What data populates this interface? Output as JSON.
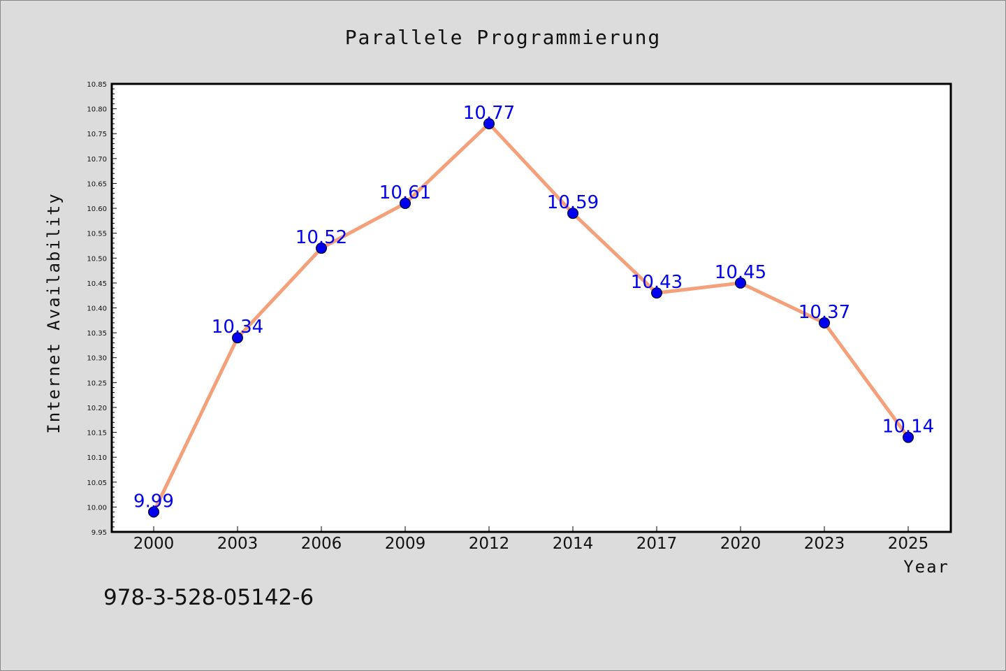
{
  "chart_data": {
    "type": "line",
    "title": "Parallele Programmierung",
    "xlabel": "Year",
    "ylabel": "Internet Availability",
    "categories": [
      "2000",
      "2003",
      "2006",
      "2009",
      "2012",
      "2014",
      "2017",
      "2020",
      "2023",
      "2025"
    ],
    "series": [
      {
        "values": [
          9.99,
          10.34,
          10.52,
          10.61,
          10.77,
          10.59,
          10.43,
          10.45,
          10.37,
          10.14
        ],
        "line_color": "#f4a07a",
        "marker_color": "#0000ee"
      }
    ],
    "data_labels": [
      "9.99",
      "10.34",
      "10.52",
      "10.61",
      "10.77",
      "10.59",
      "10.43",
      "10.45",
      "10.37",
      "10.14"
    ],
    "ylim": [
      9.95,
      10.85
    ],
    "yticks": [
      "9.95",
      "10.00",
      "10.05",
      "10.10",
      "10.15",
      "10.20",
      "10.25",
      "10.30",
      "10.35",
      "10.40",
      "10.45",
      "10.50",
      "10.55",
      "10.60",
      "10.65",
      "10.70",
      "10.75",
      "10.80",
      "10.85"
    ],
    "grid": false,
    "legend": "none"
  },
  "footer": {
    "isbn": "978-3-528-05142-6"
  }
}
